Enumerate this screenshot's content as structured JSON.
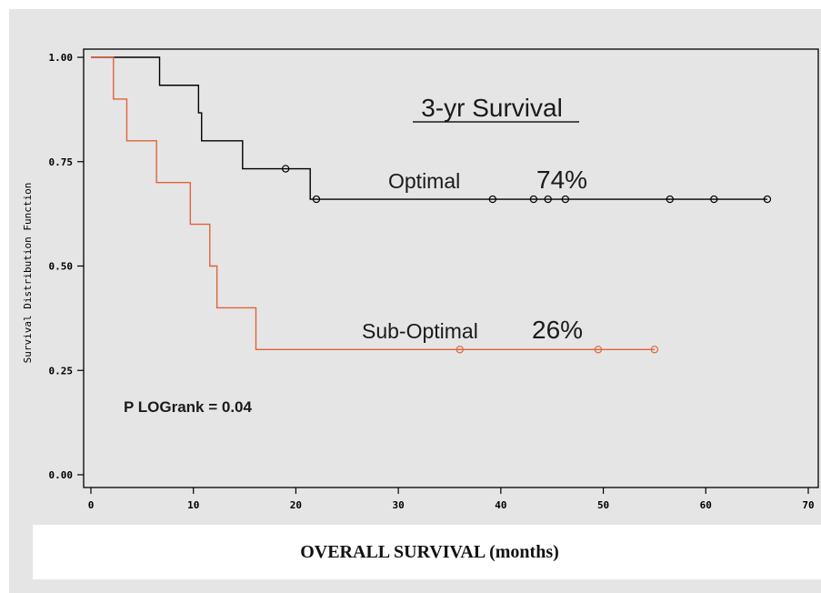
{
  "chart_data": {
    "type": "line",
    "title": "3-yr Survival",
    "xlabel": "OVERALL SURVIVAL (months)",
    "ylabel": "Survival Distribution Function",
    "xlim": [
      0,
      70
    ],
    "ylim": [
      0,
      1
    ],
    "xticks": [
      "0",
      "10",
      "20",
      "30",
      "40",
      "50",
      "60",
      "70"
    ],
    "yticks": [
      "0.00",
      "0.25",
      "0.50",
      "0.75",
      "1.00"
    ],
    "grid": false,
    "series": [
      {
        "name": "Optimal",
        "color": "#000000",
        "rate_label": "74%",
        "steps": [
          [
            0,
            1.0
          ],
          [
            6.7,
            0.933
          ],
          [
            10.5,
            0.867
          ],
          [
            10.8,
            0.8
          ],
          [
            14.8,
            0.733
          ],
          [
            21.4,
            0.66
          ],
          [
            66.0,
            0.66
          ]
        ],
        "censored": [
          [
            19.0,
            0.733
          ],
          [
            22.0,
            0.66
          ],
          [
            39.2,
            0.66
          ],
          [
            43.2,
            0.66
          ],
          [
            44.6,
            0.66
          ],
          [
            46.3,
            0.66
          ],
          [
            56.5,
            0.66
          ],
          [
            60.8,
            0.66
          ],
          [
            66.0,
            0.66
          ]
        ]
      },
      {
        "name": "Sub-Optimal",
        "color": "#e0633a",
        "rate_label": "26%",
        "steps": [
          [
            0,
            1.0
          ],
          [
            2.2,
            0.9
          ],
          [
            3.5,
            0.8
          ],
          [
            6.4,
            0.7
          ],
          [
            9.7,
            0.6
          ],
          [
            11.6,
            0.5
          ],
          [
            12.3,
            0.4
          ],
          [
            16.1,
            0.3
          ],
          [
            55.0,
            0.3
          ]
        ],
        "censored": [
          [
            36.0,
            0.3
          ],
          [
            49.5,
            0.3
          ],
          [
            55.0,
            0.3
          ]
        ]
      }
    ],
    "annotation": "P LOGrank = 0.04"
  }
}
